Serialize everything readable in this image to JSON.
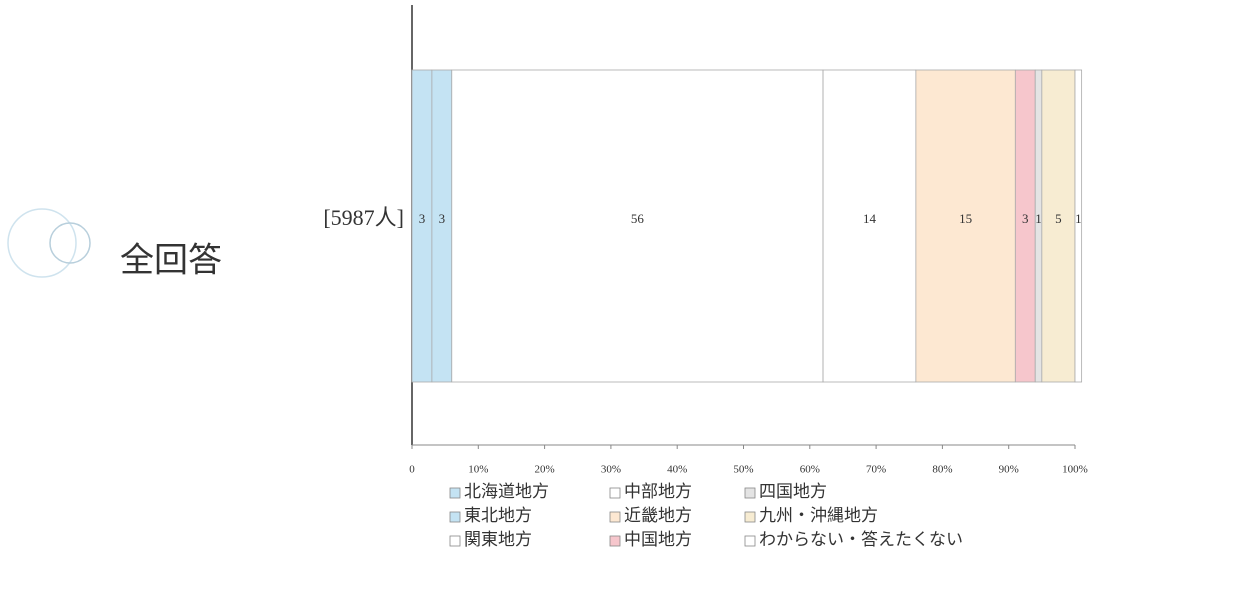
{
  "chart_data": {
    "type": "stacked_bar_horizontal",
    "group_label": "全回答",
    "categories": [
      "[5987人]"
    ],
    "series": [
      {
        "name": "北海道地方",
        "color": "#c4e3f3",
        "values": [
          3
        ]
      },
      {
        "name": "東北地方",
        "color": "#c4e3f3",
        "values": [
          3
        ]
      },
      {
        "name": "関東地方",
        "color": "#ffffff",
        "values": [
          56
        ]
      },
      {
        "name": "中部地方",
        "color": "#ffffff",
        "values": [
          14
        ]
      },
      {
        "name": "近畿地方",
        "color": "#fde8d2",
        "values": [
          15
        ]
      },
      {
        "name": "中国地方",
        "color": "#f6c6cc",
        "values": [
          3
        ]
      },
      {
        "name": "四国地方",
        "color": "#e4e4e4",
        "values": [
          1
        ]
      },
      {
        "name": "九州・沖縄地方",
        "color": "#f7ecd2",
        "values": [
          5
        ]
      },
      {
        "name": "わからない・答えたくない",
        "color": "#ffffff",
        "values": [
          1
        ]
      }
    ],
    "xlim": [
      0,
      100
    ],
    "xticks": [
      0,
      {
        "value": 10,
        "label": "10%"
      },
      {
        "value": 20,
        "label": "20%"
      },
      {
        "value": 30,
        "label": "30%"
      },
      {
        "value": 40,
        "label": "40%"
      },
      {
        "value": 50,
        "label": "50%"
      },
      {
        "value": 60,
        "label": "60%"
      },
      {
        "value": 70,
        "label": "70%"
      },
      {
        "value": 80,
        "label": "80%"
      },
      {
        "value": 90,
        "label": "90%"
      },
      {
        "value": 100,
        "label": "100%"
      }
    ]
  }
}
